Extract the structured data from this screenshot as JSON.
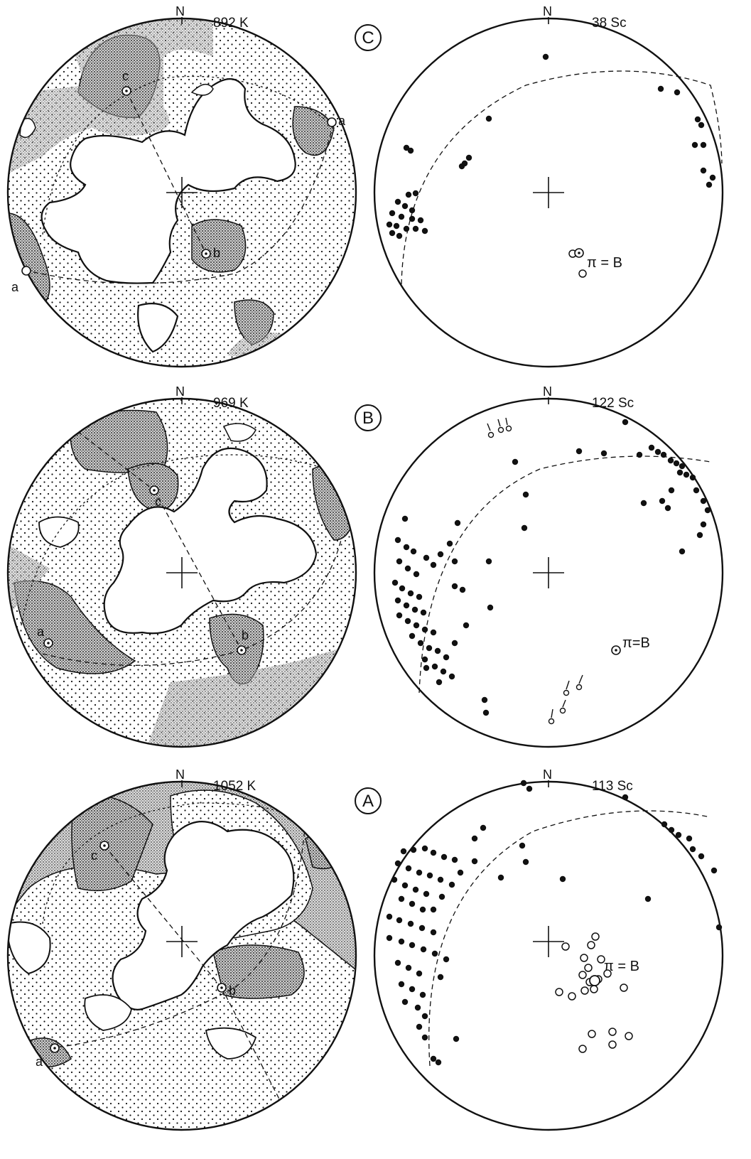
{
  "figure": {
    "rows": [
      {
        "id": "C",
        "letter": "C",
        "left": {
          "north": "N",
          "count": "892 K",
          "points": {
            "a": "a",
            "b": "b",
            "c": "c"
          }
        },
        "right": {
          "north": "N",
          "count": "38 Sc",
          "pi_label": "π = B"
        }
      },
      {
        "id": "B",
        "letter": "B",
        "left": {
          "north": "N",
          "count": "969 K",
          "points": {
            "a": "a",
            "b": "b",
            "c": "c"
          }
        },
        "right": {
          "north": "N",
          "count": "122 Sc",
          "pi_label": "π=B"
        }
      },
      {
        "id": "A",
        "letter": "A",
        "left": {
          "north": "N",
          "count": "1052 K",
          "points": {
            "a": "a",
            "b": "b",
            "c": "c"
          }
        },
        "right": {
          "north": "N",
          "count": "113 Sc",
          "pi_label": "π = B"
        }
      }
    ]
  },
  "colors": {
    "ink": "#111111",
    "paper": "#ffffff",
    "dense": "#9a9a9a"
  }
}
